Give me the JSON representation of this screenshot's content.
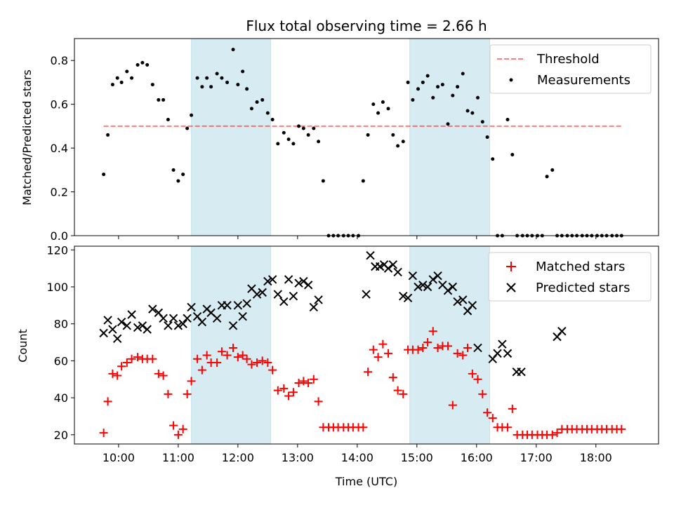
{
  "chart_data": {
    "title": "Flux total observing time = 2.66 h",
    "xlabel": "Time (UTC)",
    "x_ticks": [
      "10:00",
      "11:00",
      "12:00",
      "13:00",
      "14:00",
      "15:00",
      "16:00",
      "17:00",
      "18:00"
    ],
    "xlim_hours": [
      9.26,
      19.05
    ],
    "shaded_intervals_hours": [
      [
        11.22,
        12.55
      ],
      [
        14.88,
        16.22
      ]
    ],
    "top": {
      "type": "scatter",
      "ylabel": "Matched/Predicted stars",
      "ylim": [
        0,
        0.9
      ],
      "y_ticks": [
        "0.0",
        "0.2",
        "0.4",
        "0.6",
        "0.8"
      ],
      "threshold": {
        "name": "Threshold",
        "value": 0.5,
        "x_range_hours": [
          9.75,
          18.45
        ],
        "color": "#ff0000"
      },
      "series": [
        {
          "name": "Measurements",
          "color": "#000000",
          "x": [
            9.75,
            9.82,
            9.9,
            9.98,
            10.05,
            10.14,
            10.22,
            10.32,
            10.4,
            10.48,
            10.57,
            10.67,
            10.75,
            10.83,
            10.92,
            11.0,
            11.08,
            11.15,
            11.22,
            11.32,
            11.4,
            11.48,
            11.55,
            11.65,
            11.73,
            11.82,
            11.92,
            12.0,
            12.08,
            12.15,
            12.23,
            12.32,
            12.41,
            12.5,
            12.58,
            12.67,
            12.77,
            12.85,
            12.93,
            13.02,
            13.1,
            13.18,
            13.27,
            13.35,
            13.43,
            13.52,
            13.6,
            13.68,
            13.77,
            13.85,
            13.93,
            14.02,
            14.1,
            14.18,
            14.27,
            14.35,
            14.43,
            14.52,
            14.6,
            14.68,
            14.77,
            14.85,
            14.93,
            15.02,
            15.1,
            15.18,
            15.27,
            15.35,
            15.43,
            15.52,
            15.6,
            15.68,
            15.77,
            15.85,
            15.93,
            16.02,
            16.1,
            16.18,
            16.27,
            16.35,
            16.43,
            16.52,
            16.6,
            16.68,
            16.77,
            16.85,
            16.93,
            17.02,
            17.1,
            17.18,
            17.27,
            17.35,
            17.43,
            17.52,
            17.6,
            17.68,
            17.77,
            17.85,
            17.93,
            18.02,
            18.1,
            18.18,
            18.27,
            18.35,
            18.43
          ],
          "y": [
            0.28,
            0.46,
            0.69,
            0.72,
            0.7,
            0.75,
            0.72,
            0.78,
            0.79,
            0.78,
            0.69,
            0.62,
            0.62,
            0.53,
            0.3,
            0.25,
            0.28,
            0.49,
            0.55,
            0.72,
            0.68,
            0.72,
            0.68,
            0.74,
            0.72,
            0.7,
            0.85,
            0.69,
            0.75,
            0.67,
            0.58,
            0.61,
            0.62,
            0.56,
            0.53,
            0.42,
            0.47,
            0.44,
            0.42,
            0.5,
            0.49,
            0.46,
            0.49,
            0.43,
            0.25,
            0.0,
            0.0,
            0.0,
            0.0,
            0.0,
            0.0,
            0.0,
            0.25,
            0.46,
            0.6,
            0.56,
            0.61,
            0.58,
            0.46,
            0.41,
            0.43,
            0.7,
            0.62,
            0.67,
            0.7,
            0.73,
            0.63,
            0.68,
            0.69,
            0.51,
            0.64,
            0.68,
            0.74,
            0.57,
            0.56,
            0.63,
            0.52,
            0.45,
            0.35,
            0.0,
            0.0,
            0.53,
            0.37,
            0.0,
            0.0,
            0.0,
            0.0,
            0.0,
            0.0,
            0.27,
            0.3,
            0.0,
            0.0,
            0.0,
            0.0,
            0.0,
            0.0,
            0.0,
            0.0,
            0.0,
            0.0,
            0.0,
            0.0,
            0.0,
            0.0
          ]
        }
      ]
    },
    "bottom": {
      "type": "scatter",
      "ylabel": "Count",
      "ylim": [
        15,
        122
      ],
      "y_ticks": [
        "20",
        "40",
        "60",
        "80",
        "100",
        "120"
      ],
      "series": [
        {
          "name": "Matched stars",
          "marker": "+",
          "color": "#ff0000",
          "x": [
            9.75,
            9.82,
            9.9,
            9.98,
            10.05,
            10.14,
            10.22,
            10.32,
            10.4,
            10.48,
            10.57,
            10.67,
            10.75,
            10.83,
            10.92,
            11.0,
            11.08,
            11.15,
            11.22,
            11.32,
            11.4,
            11.48,
            11.55,
            11.65,
            11.73,
            11.82,
            11.92,
            12.0,
            12.08,
            12.15,
            12.23,
            12.32,
            12.41,
            12.5,
            12.58,
            12.67,
            12.77,
            12.85,
            12.93,
            13.02,
            13.1,
            13.18,
            13.27,
            13.35,
            13.43,
            13.52,
            13.6,
            13.68,
            13.77,
            13.85,
            13.93,
            14.02,
            14.1,
            14.18,
            14.27,
            14.35,
            14.43,
            14.52,
            14.6,
            14.68,
            14.77,
            14.85,
            14.93,
            15.02,
            15.1,
            15.18,
            15.27,
            15.35,
            15.43,
            15.52,
            15.6,
            15.68,
            15.77,
            15.85,
            15.93,
            16.02,
            16.1,
            16.18,
            16.27,
            16.35,
            16.43,
            16.52,
            16.6,
            16.68,
            16.77,
            16.85,
            16.93,
            17.02,
            17.1,
            17.18,
            17.27,
            17.35,
            17.43,
            17.52,
            17.6,
            17.68,
            17.77,
            17.85,
            17.93,
            18.02,
            18.1,
            18.18,
            18.27,
            18.35,
            18.43
          ],
          "y": [
            21,
            38,
            53,
            52,
            57,
            59,
            61,
            62,
            61,
            61,
            61,
            53,
            52,
            42,
            25,
            20,
            23,
            42,
            49,
            61,
            55,
            63,
            59,
            59,
            65,
            63,
            67,
            62,
            63,
            61,
            58,
            59,
            60,
            59,
            55,
            44,
            45,
            41,
            43,
            48,
            49,
            48,
            50,
            38,
            24,
            24,
            24,
            24,
            24,
            24,
            24,
            24,
            24,
            54,
            66,
            62,
            69,
            64,
            51,
            44,
            42,
            66,
            66,
            66,
            67,
            70,
            76,
            67,
            68,
            68,
            36,
            64,
            63,
            67,
            53,
            50,
            42,
            32,
            29,
            24,
            24,
            24,
            34,
            20,
            20,
            20,
            20,
            20,
            20,
            20,
            20,
            21,
            23,
            23,
            23,
            23,
            23,
            23,
            23,
            23,
            23,
            23,
            23,
            23,
            23
          ]
        },
        {
          "name": "Predicted stars",
          "marker": "x",
          "color": "#000000",
          "x": [
            9.75,
            9.82,
            9.9,
            9.98,
            10.05,
            10.14,
            10.22,
            10.32,
            10.4,
            10.48,
            10.57,
            10.67,
            10.75,
            10.83,
            10.92,
            11.0,
            11.08,
            11.15,
            11.22,
            11.32,
            11.4,
            11.48,
            11.55,
            11.65,
            11.73,
            11.82,
            11.92,
            12.0,
            12.08,
            12.15,
            12.23,
            12.32,
            12.41,
            12.5,
            12.58,
            12.67,
            12.77,
            12.85,
            12.93,
            13.02,
            13.1,
            13.18,
            13.27,
            13.35,
            14.15,
            14.22,
            14.3,
            14.38,
            14.45,
            14.52,
            14.6,
            14.68,
            14.77,
            14.85,
            14.93,
            15.02,
            15.1,
            15.18,
            15.27,
            15.35,
            15.43,
            15.52,
            15.6,
            15.68,
            15.77,
            15.85,
            15.93,
            16.02,
            16.27,
            16.35,
            16.43,
            16.52,
            16.67,
            16.75,
            17.35,
            17.43
          ],
          "y": [
            75,
            82,
            77,
            72,
            81,
            79,
            85,
            78,
            79,
            77,
            88,
            86,
            83,
            79,
            83,
            79,
            80,
            83,
            89,
            84,
            81,
            88,
            86,
            83,
            90,
            90,
            79,
            90,
            84,
            91,
            99,
            96,
            97,
            103,
            104,
            96,
            92,
            104,
            95,
            102,
            103,
            101,
            89,
            93,
            96,
            117,
            111,
            111,
            112,
            110,
            112,
            108,
            95,
            94,
            106,
            100,
            101,
            100,
            104,
            106,
            101,
            98,
            100,
            92,
            93,
            87,
            90,
            67,
            61,
            64,
            69,
            64,
            54,
            54,
            73,
            76
          ]
        }
      ]
    }
  }
}
